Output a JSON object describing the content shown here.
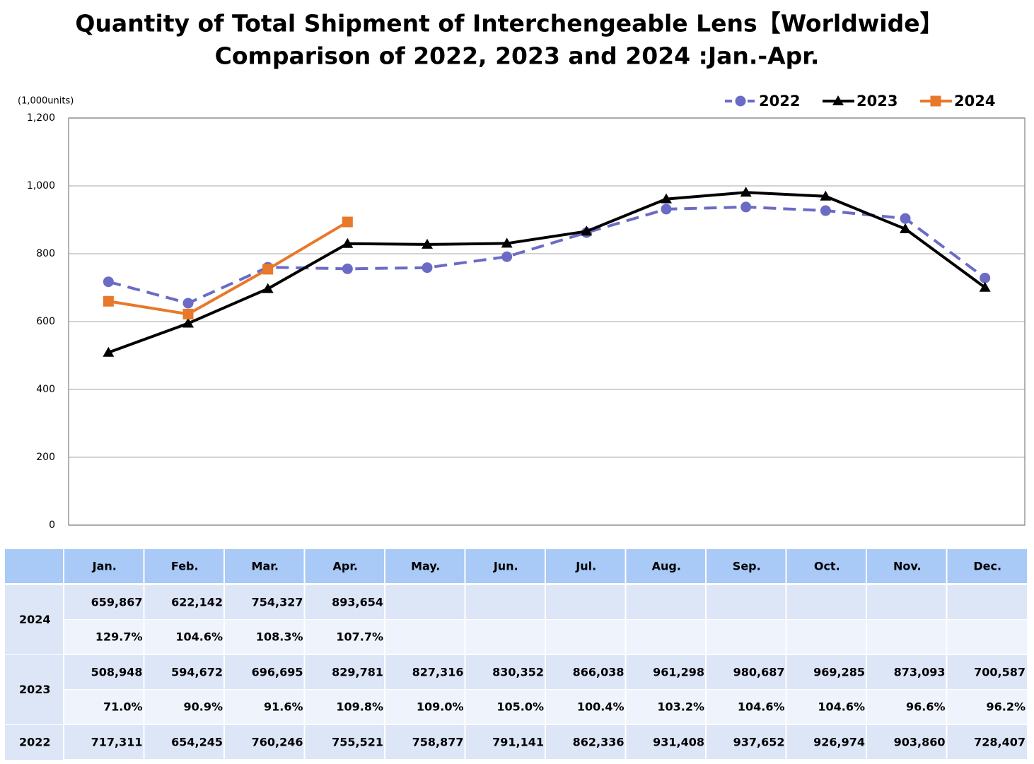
{
  "chart_data": {
    "type": "line",
    "title": "Quantity of Total Shipment of Interchengeable Lens【Worldwide】",
    "subtitle": "Comparison of 2022, 2023 and 2024 :Jan.-Apr.",
    "y_axis_label": "(1,000units)",
    "categories": [
      "Jan.",
      "Feb.",
      "Mar.",
      "Apr.",
      "May.",
      "Jun.",
      "Jul.",
      "Aug.",
      "Sep.",
      "Oct.",
      "Nov.",
      "Dec."
    ],
    "ylim": [
      0,
      1200
    ],
    "yticks": [
      0,
      200,
      400,
      600,
      800,
      {
        "value": 1000,
        "label": "1,000"
      },
      {
        "value": 1200,
        "label": "1,200"
      }
    ],
    "grid": true,
    "legend": "top-right",
    "series": [
      {
        "name": "2022",
        "color": "#6b6bc6",
        "dash": true,
        "marker": "circle",
        "values": [
          717.311,
          654.245,
          760.246,
          755.521,
          758.877,
          791.141,
          862.336,
          931.408,
          937.652,
          926.974,
          903.86,
          728.407
        ]
      },
      {
        "name": "2023",
        "color": "#000000",
        "dash": false,
        "marker": "triangle",
        "values": [
          508.948,
          594.672,
          696.695,
          829.781,
          827.316,
          830.352,
          866.038,
          961.298,
          980.687,
          969.285,
          873.093,
          700.587
        ]
      },
      {
        "name": "2024",
        "color": "#e8782a",
        "dash": false,
        "marker": "square",
        "values": [
          659.867,
          622.142,
          754.327,
          893.654,
          null,
          null,
          null,
          null,
          null,
          null,
          null,
          null
        ]
      }
    ]
  },
  "table": {
    "groups": [
      {
        "label": "2024",
        "rows": [
          [
            "659,867",
            "622,142",
            "754,327",
            "893,654"
          ],
          [
            "129.7%",
            "104.6%",
            "108.3%",
            "107.7%"
          ]
        ]
      },
      {
        "label": "2023",
        "rows": [
          [
            "508,948",
            "594,672",
            "696,695",
            "829,781",
            "827,316",
            "830,352",
            "866,038",
            "961,298",
            "980,687",
            "969,285",
            "873,093",
            "700,587"
          ],
          [
            "71.0%",
            "90.9%",
            "91.6%",
            "109.8%",
            "109.0%",
            "105.0%",
            "100.4%",
            "103.2%",
            "104.6%",
            "104.6%",
            "96.6%",
            "96.2%"
          ]
        ]
      },
      {
        "label": "2022",
        "rows": [
          [
            "717,311",
            "654,245",
            "760,246",
            "755,521",
            "758,877",
            "791,141",
            "862,336",
            "931,408",
            "937,652",
            "926,974",
            "903,860",
            "728,407"
          ]
        ]
      }
    ]
  }
}
